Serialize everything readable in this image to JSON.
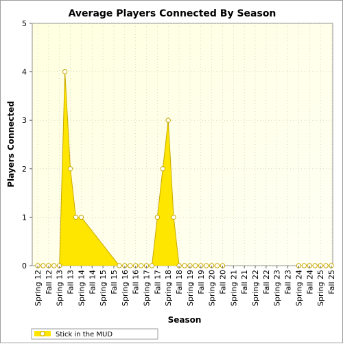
{
  "chart_data": {
    "type": "area",
    "title": "Average Players Connected By Season",
    "xlabel": "Season",
    "ylabel": "Players Connected",
    "ylim": [
      0,
      5
    ],
    "yticks": [
      0,
      1,
      2,
      3,
      4,
      5
    ],
    "grid": true,
    "legend_position": "bottom-left",
    "categories": [
      "Spring 12",
      "Fall 12",
      "Spring 13",
      "Fall 13",
      "Spring 14",
      "Fall 14",
      "Spring 15",
      "Fall 15",
      "Spring 16",
      "Fall 16",
      "Spring 17",
      "Fall 17",
      "Spring 18",
      "Fall 18",
      "Spring 19",
      "Fall 19",
      "Spring 20",
      "Fall 20",
      "Spring 21",
      "Fall 21",
      "Spring 22",
      "Fall 22",
      "Spring 23",
      "Fall 23",
      "Spring 24",
      "Fall 24",
      "Spring 25",
      "Fall 25"
    ],
    "series": [
      {
        "name": "Stick in the MUD",
        "color": "#ffe600",
        "line_color": "#c8a800",
        "points": [
          {
            "t": 0,
            "y": 0
          },
          {
            "t": 0.5,
            "y": 0
          },
          {
            "t": 1,
            "y": 0
          },
          {
            "t": 1.5,
            "y": 0
          },
          {
            "t": 2,
            "y": 0
          },
          {
            "t": 2.5,
            "y": 4
          },
          {
            "t": 3,
            "y": 2
          },
          {
            "t": 3.5,
            "y": 1
          },
          {
            "t": 4,
            "y": 1
          },
          {
            "t": 7.5,
            "y": 0
          },
          {
            "t": 8,
            "y": 0
          },
          {
            "t": 8.5,
            "y": 0
          },
          {
            "t": 9,
            "y": 0
          },
          {
            "t": 9.5,
            "y": 0
          },
          {
            "t": 10,
            "y": 0
          },
          {
            "t": 10.5,
            "y": 0
          },
          {
            "t": 11,
            "y": 1
          },
          {
            "t": 11.5,
            "y": 2
          },
          {
            "t": 12,
            "y": 3
          },
          {
            "t": 12.5,
            "y": 1
          },
          {
            "t": 13,
            "y": 0
          },
          {
            "t": 13.5,
            "y": 0
          },
          {
            "t": 14,
            "y": 0
          },
          {
            "t": 14.5,
            "y": 0
          },
          {
            "t": 15,
            "y": 0
          },
          {
            "t": 15.5,
            "y": 0
          },
          {
            "t": 16,
            "y": 0
          },
          {
            "t": 16.5,
            "y": 0
          },
          {
            "t": 17,
            "y": 0
          },
          {
            "t": 24,
            "y": 0
          },
          {
            "t": 24.5,
            "y": 0
          },
          {
            "t": 25,
            "y": 0
          },
          {
            "t": 25.5,
            "y": 0
          },
          {
            "t": 26,
            "y": 0
          },
          {
            "t": 26.5,
            "y": 0
          },
          {
            "t": 27,
            "y": 0
          }
        ]
      }
    ]
  }
}
